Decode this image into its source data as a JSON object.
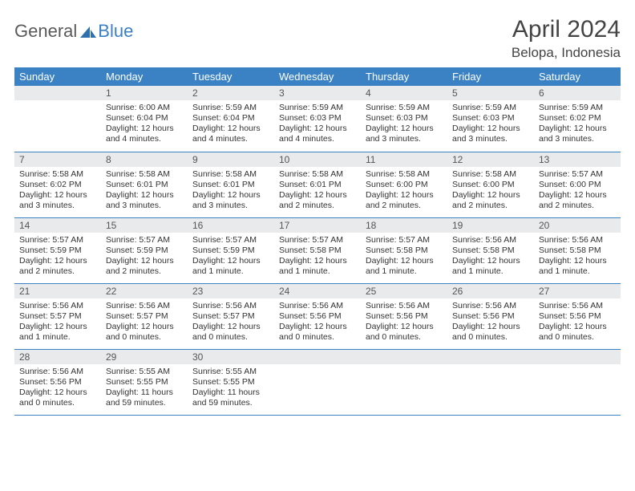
{
  "brand": {
    "part1": "General",
    "part2": "Blue",
    "icon_color": "#2f6fb0"
  },
  "title": "April 2024",
  "location": "Belopa, Indonesia",
  "colors": {
    "header_bg": "#3b82c4",
    "header_text": "#ffffff",
    "daynum_bg": "#e9eaec",
    "text": "#333333",
    "row_border": "#3b82c4"
  },
  "weekdays": [
    "Sunday",
    "Monday",
    "Tuesday",
    "Wednesday",
    "Thursday",
    "Friday",
    "Saturday"
  ],
  "weeks": [
    [
      null,
      {
        "n": "1",
        "sr": "6:00 AM",
        "ss": "6:04 PM",
        "dl": "12 hours and 4 minutes."
      },
      {
        "n": "2",
        "sr": "5:59 AM",
        "ss": "6:04 PM",
        "dl": "12 hours and 4 minutes."
      },
      {
        "n": "3",
        "sr": "5:59 AM",
        "ss": "6:03 PM",
        "dl": "12 hours and 4 minutes."
      },
      {
        "n": "4",
        "sr": "5:59 AM",
        "ss": "6:03 PM",
        "dl": "12 hours and 3 minutes."
      },
      {
        "n": "5",
        "sr": "5:59 AM",
        "ss": "6:03 PM",
        "dl": "12 hours and 3 minutes."
      },
      {
        "n": "6",
        "sr": "5:59 AM",
        "ss": "6:02 PM",
        "dl": "12 hours and 3 minutes."
      }
    ],
    [
      {
        "n": "7",
        "sr": "5:58 AM",
        "ss": "6:02 PM",
        "dl": "12 hours and 3 minutes."
      },
      {
        "n": "8",
        "sr": "5:58 AM",
        "ss": "6:01 PM",
        "dl": "12 hours and 3 minutes."
      },
      {
        "n": "9",
        "sr": "5:58 AM",
        "ss": "6:01 PM",
        "dl": "12 hours and 3 minutes."
      },
      {
        "n": "10",
        "sr": "5:58 AM",
        "ss": "6:01 PM",
        "dl": "12 hours and 2 minutes."
      },
      {
        "n": "11",
        "sr": "5:58 AM",
        "ss": "6:00 PM",
        "dl": "12 hours and 2 minutes."
      },
      {
        "n": "12",
        "sr": "5:58 AM",
        "ss": "6:00 PM",
        "dl": "12 hours and 2 minutes."
      },
      {
        "n": "13",
        "sr": "5:57 AM",
        "ss": "6:00 PM",
        "dl": "12 hours and 2 minutes."
      }
    ],
    [
      {
        "n": "14",
        "sr": "5:57 AM",
        "ss": "5:59 PM",
        "dl": "12 hours and 2 minutes."
      },
      {
        "n": "15",
        "sr": "5:57 AM",
        "ss": "5:59 PM",
        "dl": "12 hours and 2 minutes."
      },
      {
        "n": "16",
        "sr": "5:57 AM",
        "ss": "5:59 PM",
        "dl": "12 hours and 1 minute."
      },
      {
        "n": "17",
        "sr": "5:57 AM",
        "ss": "5:58 PM",
        "dl": "12 hours and 1 minute."
      },
      {
        "n": "18",
        "sr": "5:57 AM",
        "ss": "5:58 PM",
        "dl": "12 hours and 1 minute."
      },
      {
        "n": "19",
        "sr": "5:56 AM",
        "ss": "5:58 PM",
        "dl": "12 hours and 1 minute."
      },
      {
        "n": "20",
        "sr": "5:56 AM",
        "ss": "5:58 PM",
        "dl": "12 hours and 1 minute."
      }
    ],
    [
      {
        "n": "21",
        "sr": "5:56 AM",
        "ss": "5:57 PM",
        "dl": "12 hours and 1 minute."
      },
      {
        "n": "22",
        "sr": "5:56 AM",
        "ss": "5:57 PM",
        "dl": "12 hours and 0 minutes."
      },
      {
        "n": "23",
        "sr": "5:56 AM",
        "ss": "5:57 PM",
        "dl": "12 hours and 0 minutes."
      },
      {
        "n": "24",
        "sr": "5:56 AM",
        "ss": "5:56 PM",
        "dl": "12 hours and 0 minutes."
      },
      {
        "n": "25",
        "sr": "5:56 AM",
        "ss": "5:56 PM",
        "dl": "12 hours and 0 minutes."
      },
      {
        "n": "26",
        "sr": "5:56 AM",
        "ss": "5:56 PM",
        "dl": "12 hours and 0 minutes."
      },
      {
        "n": "27",
        "sr": "5:56 AM",
        "ss": "5:56 PM",
        "dl": "12 hours and 0 minutes."
      }
    ],
    [
      {
        "n": "28",
        "sr": "5:56 AM",
        "ss": "5:56 PM",
        "dl": "12 hours and 0 minutes."
      },
      {
        "n": "29",
        "sr": "5:55 AM",
        "ss": "5:55 PM",
        "dl": "11 hours and 59 minutes."
      },
      {
        "n": "30",
        "sr": "5:55 AM",
        "ss": "5:55 PM",
        "dl": "11 hours and 59 minutes."
      },
      null,
      null,
      null,
      null
    ]
  ],
  "labels": {
    "sunrise": "Sunrise: ",
    "sunset": "Sunset: ",
    "daylight": "Daylight: "
  }
}
